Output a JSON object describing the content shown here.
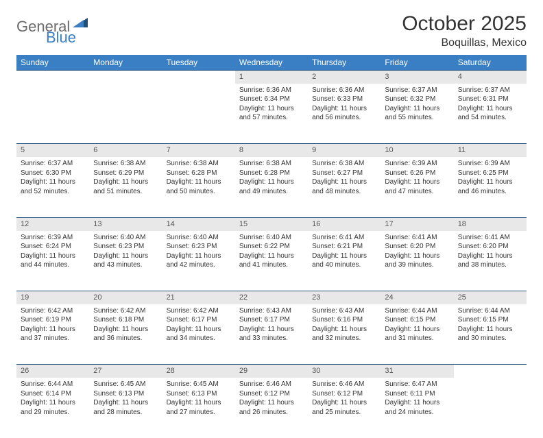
{
  "logo": {
    "general": "General",
    "blue": "Blue"
  },
  "header": {
    "month_title": "October 2025",
    "location": "Boquillas, Mexico"
  },
  "colors": {
    "header_bg": "#3a7fc4",
    "header_text": "#ffffff",
    "daynum_bg": "#e8e8e8",
    "daynum_border": "#1f4e79",
    "body_text": "#333333",
    "logo_gray": "#6b6b6b",
    "logo_blue": "#3a7fc4",
    "page_bg": "#ffffff"
  },
  "typography": {
    "month_title_fontsize": 30,
    "location_fontsize": 16,
    "weekday_fontsize": 12,
    "daynum_fontsize": 11,
    "cell_fontsize": 10
  },
  "weekdays": [
    "Sunday",
    "Monday",
    "Tuesday",
    "Wednesday",
    "Thursday",
    "Friday",
    "Saturday"
  ],
  "weeks": [
    [
      null,
      null,
      null,
      {
        "n": "1",
        "sr": "6:36 AM",
        "ss": "6:34 PM",
        "dl": "11 hours and 57 minutes."
      },
      {
        "n": "2",
        "sr": "6:36 AM",
        "ss": "6:33 PM",
        "dl": "11 hours and 56 minutes."
      },
      {
        "n": "3",
        "sr": "6:37 AM",
        "ss": "6:32 PM",
        "dl": "11 hours and 55 minutes."
      },
      {
        "n": "4",
        "sr": "6:37 AM",
        "ss": "6:31 PM",
        "dl": "11 hours and 54 minutes."
      }
    ],
    [
      {
        "n": "5",
        "sr": "6:37 AM",
        "ss": "6:30 PM",
        "dl": "11 hours and 52 minutes."
      },
      {
        "n": "6",
        "sr": "6:38 AM",
        "ss": "6:29 PM",
        "dl": "11 hours and 51 minutes."
      },
      {
        "n": "7",
        "sr": "6:38 AM",
        "ss": "6:28 PM",
        "dl": "11 hours and 50 minutes."
      },
      {
        "n": "8",
        "sr": "6:38 AM",
        "ss": "6:28 PM",
        "dl": "11 hours and 49 minutes."
      },
      {
        "n": "9",
        "sr": "6:38 AM",
        "ss": "6:27 PM",
        "dl": "11 hours and 48 minutes."
      },
      {
        "n": "10",
        "sr": "6:39 AM",
        "ss": "6:26 PM",
        "dl": "11 hours and 47 minutes."
      },
      {
        "n": "11",
        "sr": "6:39 AM",
        "ss": "6:25 PM",
        "dl": "11 hours and 46 minutes."
      }
    ],
    [
      {
        "n": "12",
        "sr": "6:39 AM",
        "ss": "6:24 PM",
        "dl": "11 hours and 44 minutes."
      },
      {
        "n": "13",
        "sr": "6:40 AM",
        "ss": "6:23 PM",
        "dl": "11 hours and 43 minutes."
      },
      {
        "n": "14",
        "sr": "6:40 AM",
        "ss": "6:23 PM",
        "dl": "11 hours and 42 minutes."
      },
      {
        "n": "15",
        "sr": "6:40 AM",
        "ss": "6:22 PM",
        "dl": "11 hours and 41 minutes."
      },
      {
        "n": "16",
        "sr": "6:41 AM",
        "ss": "6:21 PM",
        "dl": "11 hours and 40 minutes."
      },
      {
        "n": "17",
        "sr": "6:41 AM",
        "ss": "6:20 PM",
        "dl": "11 hours and 39 minutes."
      },
      {
        "n": "18",
        "sr": "6:41 AM",
        "ss": "6:20 PM",
        "dl": "11 hours and 38 minutes."
      }
    ],
    [
      {
        "n": "19",
        "sr": "6:42 AM",
        "ss": "6:19 PM",
        "dl": "11 hours and 37 minutes."
      },
      {
        "n": "20",
        "sr": "6:42 AM",
        "ss": "6:18 PM",
        "dl": "11 hours and 36 minutes."
      },
      {
        "n": "21",
        "sr": "6:42 AM",
        "ss": "6:17 PM",
        "dl": "11 hours and 34 minutes."
      },
      {
        "n": "22",
        "sr": "6:43 AM",
        "ss": "6:17 PM",
        "dl": "11 hours and 33 minutes."
      },
      {
        "n": "23",
        "sr": "6:43 AM",
        "ss": "6:16 PM",
        "dl": "11 hours and 32 minutes."
      },
      {
        "n": "24",
        "sr": "6:44 AM",
        "ss": "6:15 PM",
        "dl": "11 hours and 31 minutes."
      },
      {
        "n": "25",
        "sr": "6:44 AM",
        "ss": "6:15 PM",
        "dl": "11 hours and 30 minutes."
      }
    ],
    [
      {
        "n": "26",
        "sr": "6:44 AM",
        "ss": "6:14 PM",
        "dl": "11 hours and 29 minutes."
      },
      {
        "n": "27",
        "sr": "6:45 AM",
        "ss": "6:13 PM",
        "dl": "11 hours and 28 minutes."
      },
      {
        "n": "28",
        "sr": "6:45 AM",
        "ss": "6:13 PM",
        "dl": "11 hours and 27 minutes."
      },
      {
        "n": "29",
        "sr": "6:46 AM",
        "ss": "6:12 PM",
        "dl": "11 hours and 26 minutes."
      },
      {
        "n": "30",
        "sr": "6:46 AM",
        "ss": "6:12 PM",
        "dl": "11 hours and 25 minutes."
      },
      {
        "n": "31",
        "sr": "6:47 AM",
        "ss": "6:11 PM",
        "dl": "11 hours and 24 minutes."
      },
      null
    ]
  ],
  "labels": {
    "sunrise": "Sunrise:",
    "sunset": "Sunset:",
    "daylight": "Daylight:"
  }
}
